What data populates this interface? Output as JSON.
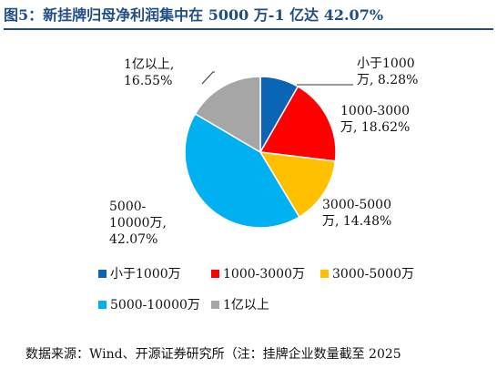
{
  "title": "图5：新挂牌归母净利润集中在 5000 万-1 亿达 42.07%",
  "source": "数据来源：Wind、开源证券研究所（注：挂牌企业数量截至 2025",
  "chart_data": {
    "type": "pie",
    "title": "",
    "slices": [
      {
        "name": "小于1000万",
        "value": 8.28,
        "color": "#0a66b5",
        "label_lines": [
          "小于1000",
          "万, 8.28%"
        ]
      },
      {
        "name": "1000-3000万",
        "value": 18.62,
        "color": "#ff0000",
        "label_lines": [
          "1000-3000",
          "万, 18.62%"
        ]
      },
      {
        "name": "3000-5000万",
        "value": 14.48,
        "color": "#ffc000",
        "label_lines": [
          "3000-5000",
          "万, 14.48%"
        ]
      },
      {
        "name": "5000-10000万",
        "value": 42.07,
        "color": "#00b0f0",
        "label_lines": [
          "5000-",
          "10000万,",
          "42.07%"
        ]
      },
      {
        "name": "1亿以上",
        "value": 16.55,
        "color": "#a6a6a6",
        "label_lines": [
          "1亿以上,",
          "16.55%"
        ]
      }
    ],
    "legend": [
      "小于1000万",
      "1000-3000万",
      "3000-5000万",
      "5000-10000万",
      "1亿以上"
    ],
    "legend_position": "bottom"
  }
}
